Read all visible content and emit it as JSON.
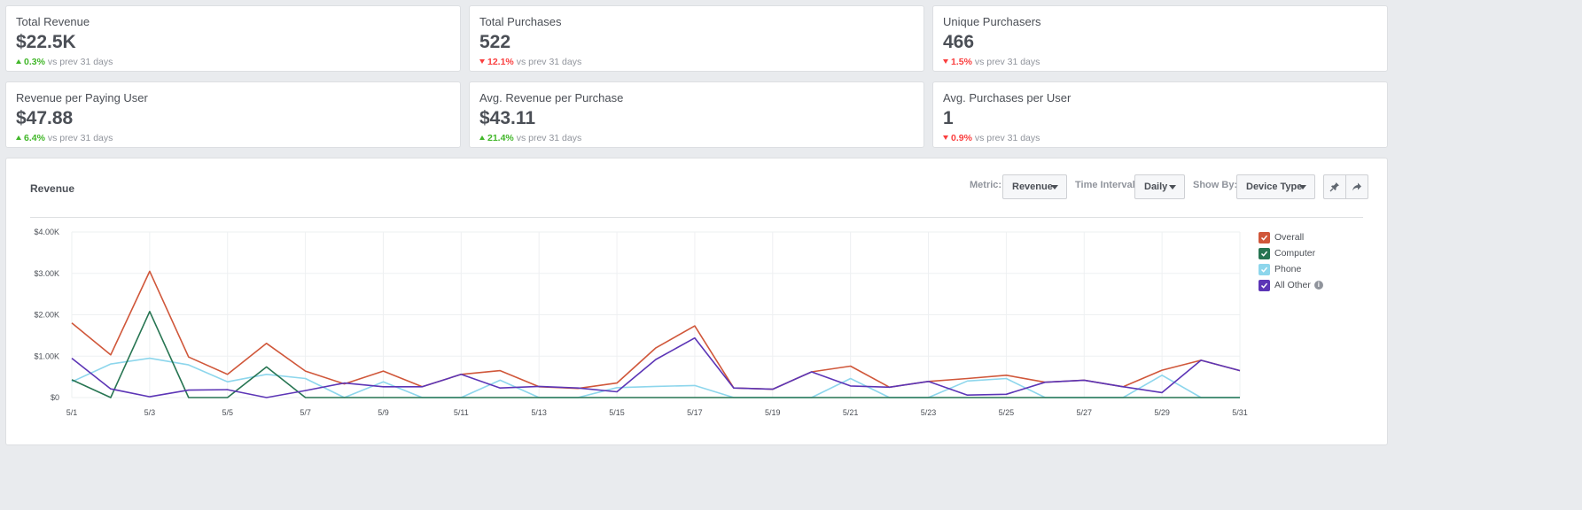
{
  "kpis": [
    {
      "label": "Total Revenue",
      "value": "$22.5K",
      "direction": "up",
      "pct": "0.3%",
      "suffix": "vs prev 31 days"
    },
    {
      "label": "Total Purchases",
      "value": "522",
      "direction": "down",
      "pct": "12.1%",
      "suffix": "vs prev 31 days"
    },
    {
      "label": "Unique Purchasers",
      "value": "466",
      "direction": "down",
      "pct": "1.5%",
      "suffix": "vs prev 31 days"
    },
    {
      "label": "Revenue per Paying User",
      "value": "$47.88",
      "direction": "up",
      "pct": "6.4%",
      "suffix": "vs prev 31 days"
    },
    {
      "label": "Avg. Revenue per Purchase",
      "value": "$43.11",
      "direction": "up",
      "pct": "21.4%",
      "suffix": "vs prev 31 days"
    },
    {
      "label": "Avg. Purchases per User",
      "value": "1",
      "direction": "down",
      "pct": "0.9%",
      "suffix": "vs prev 31 days"
    }
  ],
  "panel": {
    "title": "Revenue",
    "metric_label": "Metric:",
    "metric_value": "Revenue",
    "interval_label": "Time Interval:",
    "interval_value": "Daily",
    "showby_label": "Show By:",
    "showby_value": "Device Type",
    "pin_icon": "pin-icon",
    "share_icon": "share-icon"
  },
  "legend": [
    {
      "label": "Overall",
      "color": "#d0573a"
    },
    {
      "label": "Computer",
      "color": "#277552"
    },
    {
      "label": "Phone",
      "color": "#8dd6ec"
    },
    {
      "label": "All Other",
      "color": "#5c35b6",
      "info": "i"
    }
  ],
  "chart_data": {
    "type": "line",
    "title": "Revenue",
    "x": [
      "5/1",
      "5/2",
      "5/3",
      "5/4",
      "5/5",
      "5/6",
      "5/7",
      "5/8",
      "5/9",
      "5/10",
      "5/11",
      "5/12",
      "5/13",
      "5/14",
      "5/15",
      "5/16",
      "5/17",
      "5/18",
      "5/19",
      "5/20",
      "5/21",
      "5/22",
      "5/23",
      "5/24",
      "5/25",
      "5/26",
      "5/27",
      "5/28",
      "5/29",
      "5/30",
      "5/31"
    ],
    "x_tick_labels": [
      "5/1",
      "5/3",
      "5/5",
      "5/7",
      "5/9",
      "5/11",
      "5/13",
      "5/15",
      "5/17",
      "5/19",
      "5/21",
      "5/23",
      "5/25",
      "5/27",
      "5/29",
      "5/31"
    ],
    "y_tick_labels": [
      "$0",
      "$1.00K",
      "$2.00K",
      "$3.00K",
      "$4.00K"
    ],
    "ylim": [
      0,
      4000
    ],
    "grid": true,
    "legend_position": "right",
    "series": [
      {
        "name": "Overall",
        "color": "#d0573a",
        "values": [
          1800,
          1030,
          3050,
          980,
          560,
          1310,
          640,
          330,
          640,
          260,
          560,
          650,
          260,
          220,
          350,
          1200,
          1730,
          230,
          200,
          620,
          760,
          250,
          390,
          460,
          540,
          370,
          420,
          260,
          660,
          900,
          650
        ]
      },
      {
        "name": "Computer",
        "color": "#277552",
        "values": [
          430,
          0,
          2080,
          0,
          0,
          740,
          0,
          0,
          0,
          0,
          0,
          0,
          0,
          0,
          0,
          0,
          0,
          0,
          0,
          0,
          0,
          0,
          0,
          0,
          0,
          0,
          0,
          0,
          0,
          0,
          0
        ]
      },
      {
        "name": "Phone",
        "color": "#8dd6ec",
        "values": [
          380,
          810,
          950,
          790,
          380,
          560,
          460,
          0,
          380,
          0,
          0,
          420,
          0,
          0,
          240,
          270,
          290,
          0,
          0,
          0,
          460,
          0,
          0,
          400,
          460,
          0,
          0,
          0,
          540,
          0,
          0
        ]
      },
      {
        "name": "All Other",
        "color": "#5c35b6",
        "values": [
          950,
          210,
          20,
          180,
          190,
          0,
          170,
          350,
          260,
          260,
          560,
          230,
          270,
          230,
          140,
          920,
          1440,
          230,
          200,
          620,
          280,
          250,
          390,
          60,
          80,
          370,
          420,
          260,
          120,
          900,
          650
        ]
      }
    ]
  }
}
